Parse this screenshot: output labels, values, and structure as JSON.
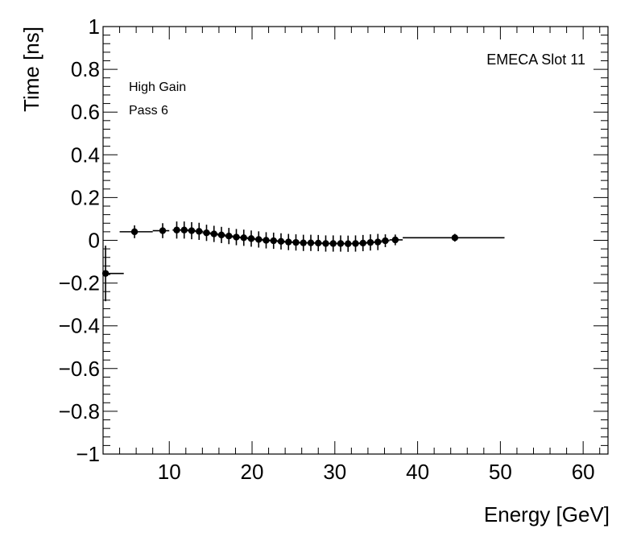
{
  "chart_data": {
    "type": "scatter",
    "title": "",
    "xlabel": "Energy [GeV]",
    "ylabel": "Time [ns]",
    "xlim": [
      2,
      63
    ],
    "ylim": [
      -1,
      1
    ],
    "x_ticks": [
      10,
      20,
      30,
      40,
      50,
      60
    ],
    "y_ticks": [
      -1,
      -0.8,
      -0.6,
      -0.4,
      -0.2,
      0,
      0.2,
      0.4,
      0.6,
      0.8,
      1
    ],
    "x_tick_labels": [
      "10",
      "20",
      "30",
      "40",
      "50",
      "60"
    ],
    "y_tick_labels": [
      "−1",
      "−0.8",
      "−0.6",
      "−0.4",
      "−0.2",
      "0",
      "0.2",
      "0.4",
      "0.6",
      "0.8",
      "1"
    ],
    "annotations": {
      "top_right": "EMECA Slot 11",
      "line1": "High Gain",
      "line2": "Pass 6"
    },
    "series": [
      {
        "name": "High Gain Pass 6",
        "points": [
          {
            "x": 2.3,
            "xlo": 2.3,
            "xhi": 4.5,
            "y": -0.155,
            "err": 0.13
          },
          {
            "x": 5.8,
            "xlo": 4.0,
            "xhi": 8.0,
            "y": 0.04,
            "err": 0.03
          },
          {
            "x": 9.2,
            "xlo": 8.0,
            "xhi": 10.0,
            "y": 0.045,
            "err": 0.035
          },
          {
            "x": 10.9,
            "xlo": 10.4,
            "xhi": 11.4,
            "y": 0.048,
            "err": 0.04
          },
          {
            "x": 11.8,
            "xlo": 11.3,
            "xhi": 12.3,
            "y": 0.048,
            "err": 0.04
          },
          {
            "x": 12.7,
            "xlo": 12.2,
            "xhi": 13.2,
            "y": 0.045,
            "err": 0.04
          },
          {
            "x": 13.6,
            "xlo": 13.1,
            "xhi": 14.1,
            "y": 0.042,
            "err": 0.04
          },
          {
            "x": 14.5,
            "xlo": 14.0,
            "xhi": 15.0,
            "y": 0.035,
            "err": 0.038
          },
          {
            "x": 15.4,
            "xlo": 14.9,
            "xhi": 15.9,
            "y": 0.03,
            "err": 0.038
          },
          {
            "x": 16.3,
            "xlo": 15.8,
            "xhi": 16.8,
            "y": 0.025,
            "err": 0.038
          },
          {
            "x": 17.2,
            "xlo": 16.7,
            "xhi": 17.7,
            "y": 0.02,
            "err": 0.038
          },
          {
            "x": 18.1,
            "xlo": 17.6,
            "xhi": 18.6,
            "y": 0.015,
            "err": 0.038
          },
          {
            "x": 19.0,
            "xlo": 18.5,
            "xhi": 19.5,
            "y": 0.012,
            "err": 0.038
          },
          {
            "x": 19.9,
            "xlo": 19.4,
            "xhi": 20.4,
            "y": 0.008,
            "err": 0.038
          },
          {
            "x": 20.8,
            "xlo": 20.3,
            "xhi": 21.3,
            "y": 0.004,
            "err": 0.038
          },
          {
            "x": 21.7,
            "xlo": 21.2,
            "xhi": 22.2,
            "y": 0.0,
            "err": 0.038
          },
          {
            "x": 22.6,
            "xlo": 22.1,
            "xhi": 23.1,
            "y": -0.002,
            "err": 0.038
          },
          {
            "x": 23.5,
            "xlo": 23.0,
            "xhi": 24.0,
            "y": -0.005,
            "err": 0.038
          },
          {
            "x": 24.4,
            "xlo": 23.9,
            "xhi": 24.9,
            "y": -0.008,
            "err": 0.038
          },
          {
            "x": 25.3,
            "xlo": 24.8,
            "xhi": 25.8,
            "y": -0.01,
            "err": 0.038
          },
          {
            "x": 26.2,
            "xlo": 25.7,
            "xhi": 26.7,
            "y": -0.012,
            "err": 0.038
          },
          {
            "x": 27.1,
            "xlo": 26.6,
            "xhi": 27.6,
            "y": -0.012,
            "err": 0.038
          },
          {
            "x": 28.0,
            "xlo": 27.5,
            "xhi": 28.5,
            "y": -0.013,
            "err": 0.038
          },
          {
            "x": 28.9,
            "xlo": 28.4,
            "xhi": 29.4,
            "y": -0.015,
            "err": 0.038
          },
          {
            "x": 29.8,
            "xlo": 29.3,
            "xhi": 30.3,
            "y": -0.015,
            "err": 0.038
          },
          {
            "x": 30.7,
            "xlo": 30.2,
            "xhi": 31.2,
            "y": -0.015,
            "err": 0.038
          },
          {
            "x": 31.6,
            "xlo": 31.1,
            "xhi": 32.1,
            "y": -0.016,
            "err": 0.038
          },
          {
            "x": 32.5,
            "xlo": 32.0,
            "xhi": 33.0,
            "y": -0.015,
            "err": 0.038
          },
          {
            "x": 33.4,
            "xlo": 32.9,
            "xhi": 33.9,
            "y": -0.013,
            "err": 0.038
          },
          {
            "x": 34.3,
            "xlo": 33.8,
            "xhi": 34.8,
            "y": -0.01,
            "err": 0.038
          },
          {
            "x": 35.2,
            "xlo": 34.7,
            "xhi": 35.7,
            "y": -0.008,
            "err": 0.038
          },
          {
            "x": 36.1,
            "xlo": 35.6,
            "xhi": 36.6,
            "y": -0.002,
            "err": 0.03
          },
          {
            "x": 37.3,
            "xlo": 36.6,
            "xhi": 38.2,
            "y": 0.002,
            "err": 0.025
          },
          {
            "x": 44.5,
            "xlo": 38.2,
            "xhi": 50.5,
            "y": 0.012,
            "err": 0.018
          }
        ]
      }
    ]
  }
}
